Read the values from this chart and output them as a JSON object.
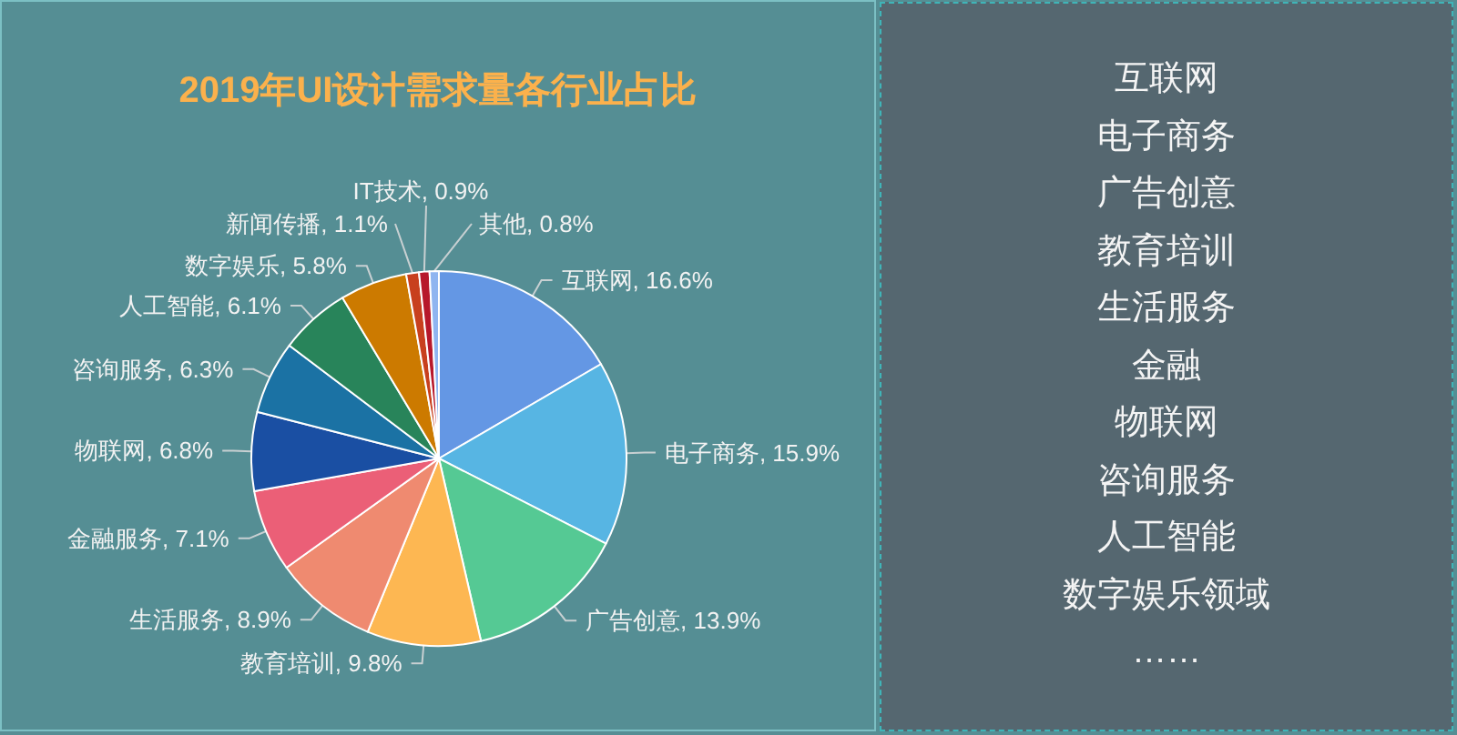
{
  "chart_data": [
    {
      "type": "pie",
      "title": "2019年UI设计需求量各行业占比",
      "categories": [
        "互联网",
        "电子商务",
        "广告创意",
        "教育培训",
        "生活服务",
        "金融服务",
        "物联网",
        "咨询服务",
        "人工智能",
        "数字娱乐",
        "新闻传播",
        "IT技术",
        "其他"
      ],
      "values": [
        16.6,
        15.9,
        13.9,
        9.8,
        8.9,
        7.1,
        6.8,
        6.3,
        6.1,
        5.8,
        1.1,
        0.9,
        0.8
      ],
      "value_labels": [
        "16.6%",
        "15.9%",
        "13.9%",
        "9.8%",
        "8.9%",
        "7.1%",
        "6.8%",
        "6.3%",
        "6.1%",
        "5.8%",
        "1.1%",
        "0.9%",
        "0.8%"
      ],
      "colors": [
        "#6497e4",
        "#57b5e3",
        "#55c994",
        "#fdb752",
        "#ef8a70",
        "#eb5f77",
        "#1a4fa3",
        "#1b72a4",
        "#28845a",
        "#cc7a00",
        "#c8401e",
        "#b7182b",
        "#8fb5f0"
      ],
      "legend": false
    },
    {
      "type": "other",
      "annotations": [
        "互联网",
        "电子商务",
        "广告创意",
        "教育培训",
        "生活服务",
        "金融",
        "物联网",
        "咨询服务",
        "人工智能",
        "数字娱乐领域",
        "……"
      ]
    }
  ]
}
